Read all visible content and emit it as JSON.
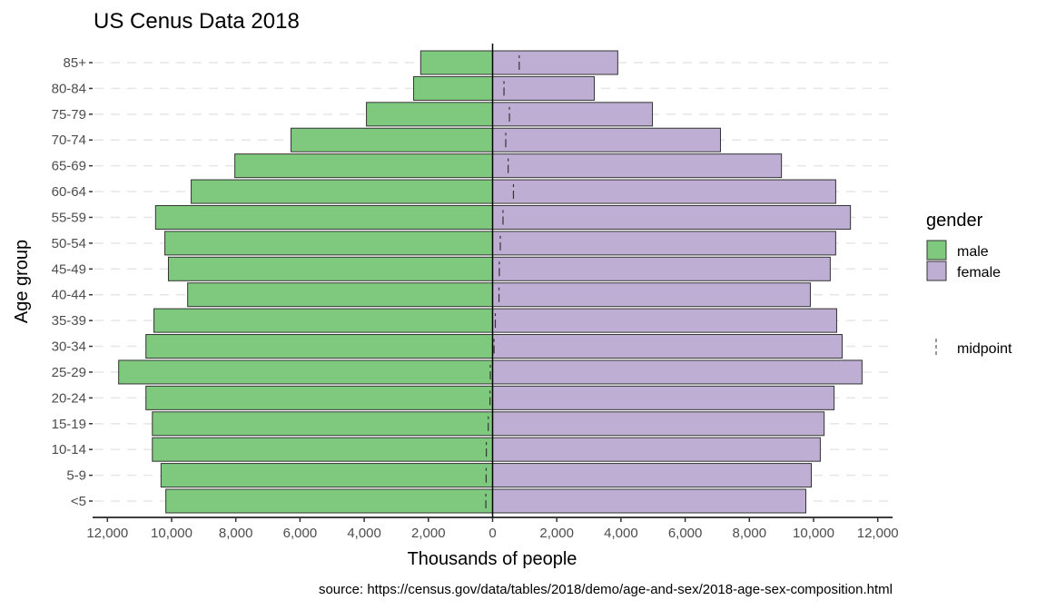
{
  "chart_data": {
    "type": "bar",
    "orientation": "horizontal",
    "title": "US Cenus Data 2018",
    "xlabel": "Thousands of people",
    "ylabel": "Age group",
    "caption": "source: https://census.gov/data/tables/2018/demo/age-and-sex/2018-age-sex-composition.html",
    "xlim": [
      -12000,
      12000
    ],
    "x_ticks": [
      -12000,
      -10000,
      -8000,
      -6000,
      -4000,
      -2000,
      0,
      2000,
      4000,
      6000,
      8000,
      10000,
      12000
    ],
    "x_tick_labels": [
      "12,000",
      "10,000",
      "8,000",
      "6,000",
      "4,000",
      "2,000",
      "0",
      "2,000",
      "4,000",
      "6,000",
      "8,000",
      "10,000",
      "12,000"
    ],
    "categories": [
      "<5",
      "5-9",
      "10-14",
      "15-19",
      "20-24",
      "25-29",
      "30-34",
      "35-39",
      "40-44",
      "45-49",
      "50-54",
      "55-59",
      "60-64",
      "65-69",
      "70-74",
      "75-79",
      "80-84",
      "85+"
    ],
    "series": [
      {
        "name": "male",
        "color": "#7fc97f",
        "direction": "left",
        "values": [
          10180,
          10330,
          10600,
          10600,
          10800,
          11650,
          10800,
          10550,
          9500,
          10100,
          10210,
          10500,
          9390,
          8030,
          6280,
          3930,
          2460,
          2240
        ]
      },
      {
        "name": "female",
        "color": "#beaed4",
        "direction": "right",
        "values": [
          9760,
          9930,
          10210,
          10330,
          10640,
          11510,
          10890,
          10720,
          9900,
          10520,
          10690,
          11150,
          10690,
          9000,
          7100,
          4980,
          3170,
          3900
        ]
      }
    ],
    "midpoint": {
      "name": "midpoint",
      "style": "dashed vertical line",
      "color": "#333333"
    },
    "legend": {
      "title": "gender",
      "position": "right",
      "items": [
        "male",
        "female"
      ],
      "midpoint_label": "midpoint"
    },
    "grid": {
      "horizontal_major": "dashed",
      "vertical": false
    }
  }
}
